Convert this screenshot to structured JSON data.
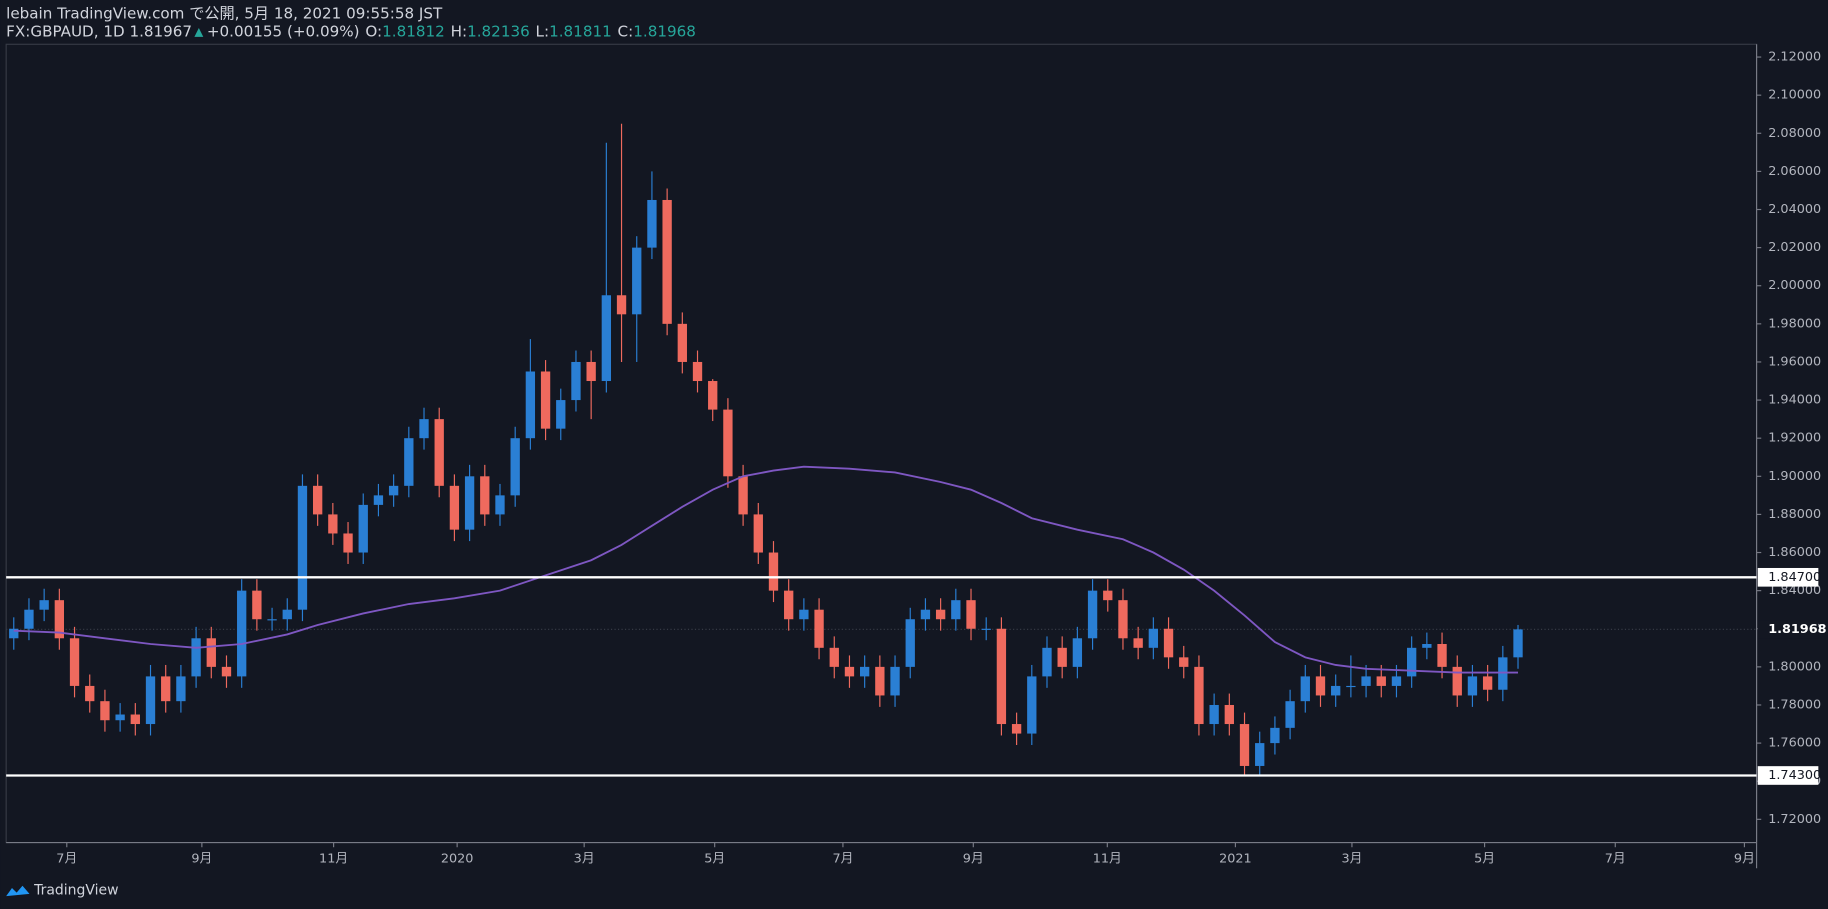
{
  "header": {
    "line1": "lebain TradingView.com で公開, 5月 18, 2021 09:55:58 JST",
    "symbol": "FX:GBPAUD, 1D 1.81967",
    "arrow": "▲",
    "change": "+0.00155 (+0.09%)",
    "o_label": "O:",
    "o_value": "1.81812",
    "h_label": "H:",
    "h_value": "1.82136",
    "l_label": "L:",
    "l_value": "1.81811",
    "c_label": "C:",
    "c_value": "1.81968"
  },
  "footer": {
    "brand": "TradingView"
  },
  "chart_data": {
    "type": "candlestick",
    "open": [
      1.815,
      1.82,
      1.83,
      1.835,
      1.815,
      1.79,
      1.782,
      1.772,
      1.775,
      1.77,
      1.795,
      1.782,
      1.795,
      1.815,
      1.8,
      1.795,
      1.84,
      1.825,
      1.825,
      1.83,
      1.895,
      1.88,
      1.87,
      1.86,
      1.885,
      1.89,
      1.895,
      1.92,
      1.93,
      1.895,
      1.872,
      1.9,
      1.88,
      1.89,
      1.92,
      1.955,
      1.925,
      1.94,
      1.96,
      1.95,
      1.995,
      1.985,
      2.02,
      2.045,
      1.98,
      1.96,
      1.95,
      1.935,
      1.9,
      1.88,
      1.86,
      1.84,
      1.825,
      1.83,
      1.81,
      1.8,
      1.795,
      1.8,
      1.785,
      1.8,
      1.825,
      1.83,
      1.825,
      1.835,
      1.82,
      1.82,
      1.77,
      1.765,
      1.795,
      1.81,
      1.8,
      1.815,
      1.84,
      1.835,
      1.815,
      1.81,
      1.82,
      1.805,
      1.8,
      1.77,
      1.78,
      1.77,
      1.748,
      1.76,
      1.768,
      1.782,
      1.795,
      1.785,
      1.79,
      1.79,
      1.795,
      1.79,
      1.795,
      1.81,
      1.812,
      1.8,
      1.785,
      1.795,
      1.788,
      1.805
    ],
    "high": [
      1.826,
      1.836,
      1.841,
      1.841,
      1.821,
      1.796,
      1.788,
      1.781,
      1.781,
      1.801,
      1.801,
      1.801,
      1.821,
      1.821,
      1.806,
      1.846,
      1.846,
      1.831,
      1.836,
      1.901,
      1.901,
      1.886,
      1.876,
      1.891,
      1.896,
      1.901,
      1.926,
      1.936,
      1.936,
      1.901,
      1.906,
      1.906,
      1.896,
      1.926,
      1.972,
      1.961,
      1.946,
      1.966,
      1.966,
      2.075,
      2.085,
      2.026,
      2.06,
      2.051,
      1.986,
      1.966,
      1.951,
      1.941,
      1.906,
      1.886,
      1.866,
      1.846,
      1.836,
      1.836,
      1.816,
      1.806,
      1.806,
      1.806,
      1.806,
      1.831,
      1.836,
      1.836,
      1.841,
      1.841,
      1.826,
      1.826,
      1.776,
      1.801,
      1.816,
      1.816,
      1.821,
      1.846,
      1.846,
      1.841,
      1.821,
      1.826,
      1.826,
      1.811,
      1.806,
      1.786,
      1.786,
      1.776,
      1.766,
      1.774,
      1.788,
      1.801,
      1.801,
      1.796,
      1.806,
      1.801,
      1.801,
      1.801,
      1.816,
      1.818,
      1.818,
      1.806,
      1.801,
      1.801,
      1.811,
      1.822
    ],
    "low": [
      1.809,
      1.814,
      1.824,
      1.809,
      1.784,
      1.776,
      1.766,
      1.766,
      1.764,
      1.764,
      1.776,
      1.776,
      1.789,
      1.794,
      1.789,
      1.789,
      1.819,
      1.819,
      1.819,
      1.824,
      1.874,
      1.864,
      1.854,
      1.854,
      1.879,
      1.884,
      1.889,
      1.914,
      1.889,
      1.866,
      1.866,
      1.874,
      1.874,
      1.884,
      1.914,
      1.919,
      1.919,
      1.934,
      1.93,
      1.944,
      1.96,
      1.96,
      2.014,
      1.974,
      1.954,
      1.944,
      1.929,
      1.894,
      1.874,
      1.854,
      1.834,
      1.819,
      1.819,
      1.804,
      1.794,
      1.789,
      1.789,
      1.779,
      1.779,
      1.794,
      1.819,
      1.819,
      1.819,
      1.814,
      1.814,
      1.764,
      1.759,
      1.759,
      1.789,
      1.794,
      1.794,
      1.809,
      1.829,
      1.809,
      1.804,
      1.804,
      1.799,
      1.794,
      1.764,
      1.764,
      1.764,
      1.743,
      1.743,
      1.754,
      1.762,
      1.776,
      1.779,
      1.779,
      1.784,
      1.784,
      1.784,
      1.784,
      1.789,
      1.804,
      1.794,
      1.779,
      1.779,
      1.782,
      1.782,
      1.799
    ],
    "close": [
      1.82,
      1.83,
      1.835,
      1.815,
      1.79,
      1.782,
      1.772,
      1.775,
      1.77,
      1.795,
      1.782,
      1.795,
      1.815,
      1.8,
      1.795,
      1.84,
      1.825,
      1.825,
      1.83,
      1.895,
      1.88,
      1.87,
      1.86,
      1.885,
      1.89,
      1.895,
      1.92,
      1.93,
      1.895,
      1.872,
      1.9,
      1.88,
      1.89,
      1.92,
      1.955,
      1.925,
      1.94,
      1.96,
      1.95,
      1.995,
      1.985,
      2.02,
      2.045,
      1.98,
      1.96,
      1.95,
      1.935,
      1.9,
      1.88,
      1.86,
      1.84,
      1.825,
      1.83,
      1.81,
      1.8,
      1.795,
      1.8,
      1.785,
      1.8,
      1.825,
      1.83,
      1.825,
      1.835,
      1.82,
      1.82,
      1.77,
      1.765,
      1.795,
      1.81,
      1.8,
      1.815,
      1.84,
      1.835,
      1.815,
      1.81,
      1.82,
      1.805,
      1.8,
      1.77,
      1.78,
      1.77,
      1.748,
      1.76,
      1.768,
      1.782,
      1.795,
      1.785,
      1.79,
      1.79,
      1.795,
      1.79,
      1.795,
      1.81,
      1.812,
      1.8,
      1.785,
      1.795,
      1.788,
      1.805,
      1.81968
    ],
    "colors": {
      "up": "#2a7fd4",
      "down": "#ef6a5e"
    },
    "ma": {
      "color": "#7e57c2",
      "x": [
        0,
        3,
        6,
        9,
        12,
        15,
        18,
        20,
        23,
        26,
        29,
        32,
        35,
        38,
        40,
        42,
        44,
        46,
        48,
        50,
        52,
        55,
        58,
        61,
        63,
        65,
        67,
        70,
        73,
        75,
        77,
        79,
        81,
        83,
        85,
        87,
        89,
        92,
        95,
        99
      ],
      "values": [
        1.819,
        1.818,
        1.815,
        1.812,
        1.81,
        1.812,
        1.817,
        1.822,
        1.828,
        1.833,
        1.836,
        1.84,
        1.848,
        1.856,
        1.864,
        1.874,
        1.884,
        1.893,
        1.9,
        1.903,
        1.905,
        1.904,
        1.902,
        1.897,
        1.893,
        1.886,
        1.878,
        1.872,
        1.867,
        1.86,
        1.851,
        1.84,
        1.827,
        1.813,
        1.805,
        1.801,
        1.799,
        1.798,
        1.797,
        1.797
      ]
    },
    "levels": [
      {
        "value": 1.847,
        "label": "1.84700"
      },
      {
        "value": 1.743,
        "label": "1.74300"
      }
    ],
    "last_price": 1.81968,
    "xlim": [
      -0.5,
      114.7
    ],
    "xticks": [
      {
        "value": 3.49,
        "label": "7月"
      },
      {
        "value": 12.38,
        "label": "9月"
      },
      {
        "value": 21.05,
        "label": "11月"
      },
      {
        "value": 29.18,
        "label": "2020"
      },
      {
        "value": 37.54,
        "label": "3月"
      },
      {
        "value": 46.13,
        "label": "5月"
      },
      {
        "value": 54.57,
        "label": "7月"
      },
      {
        "value": 63.15,
        "label": "9月"
      },
      {
        "value": 71.97,
        "label": "11月"
      },
      {
        "value": 80.4,
        "label": "2021"
      },
      {
        "value": 88.07,
        "label": "3月"
      },
      {
        "value": 96.8,
        "label": "5月"
      },
      {
        "value": 105.4,
        "label": "7月"
      },
      {
        "value": 113.9,
        "label": "9月"
      }
    ],
    "ylim": [
      1.7078,
      2.1267
    ],
    "yticks": [
      {
        "value": 1.72,
        "label": "1.72000"
      },
      {
        "value": 1.74,
        "label": "1.74000"
      },
      {
        "value": 1.76,
        "label": "1.76000"
      },
      {
        "value": 1.78,
        "label": "1.78000"
      },
      {
        "value": 1.8,
        "label": "1.80000"
      },
      {
        "value": 1.82,
        "label": "1.82000"
      },
      {
        "value": 1.84,
        "label": "1.84000"
      },
      {
        "value": 1.86,
        "label": "1.86000"
      },
      {
        "value": 1.88,
        "label": "1.88000"
      },
      {
        "value": 1.9,
        "label": "1.90000"
      },
      {
        "value": 1.92,
        "label": "1.92000"
      },
      {
        "value": 1.94,
        "label": "1.94000"
      },
      {
        "value": 1.96,
        "label": "1.96000"
      },
      {
        "value": 1.98,
        "label": "1.98000"
      },
      {
        "value": 2.0,
        "label": "2.00000"
      },
      {
        "value": 2.02,
        "label": "2.02000"
      },
      {
        "value": 2.04,
        "label": "2.04000"
      },
      {
        "value": 2.06,
        "label": "2.06000"
      },
      {
        "value": 2.08,
        "label": "2.08000"
      },
      {
        "value": 2.1,
        "label": "2.10000"
      },
      {
        "value": 2.12,
        "label": "2.12000"
      }
    ]
  }
}
